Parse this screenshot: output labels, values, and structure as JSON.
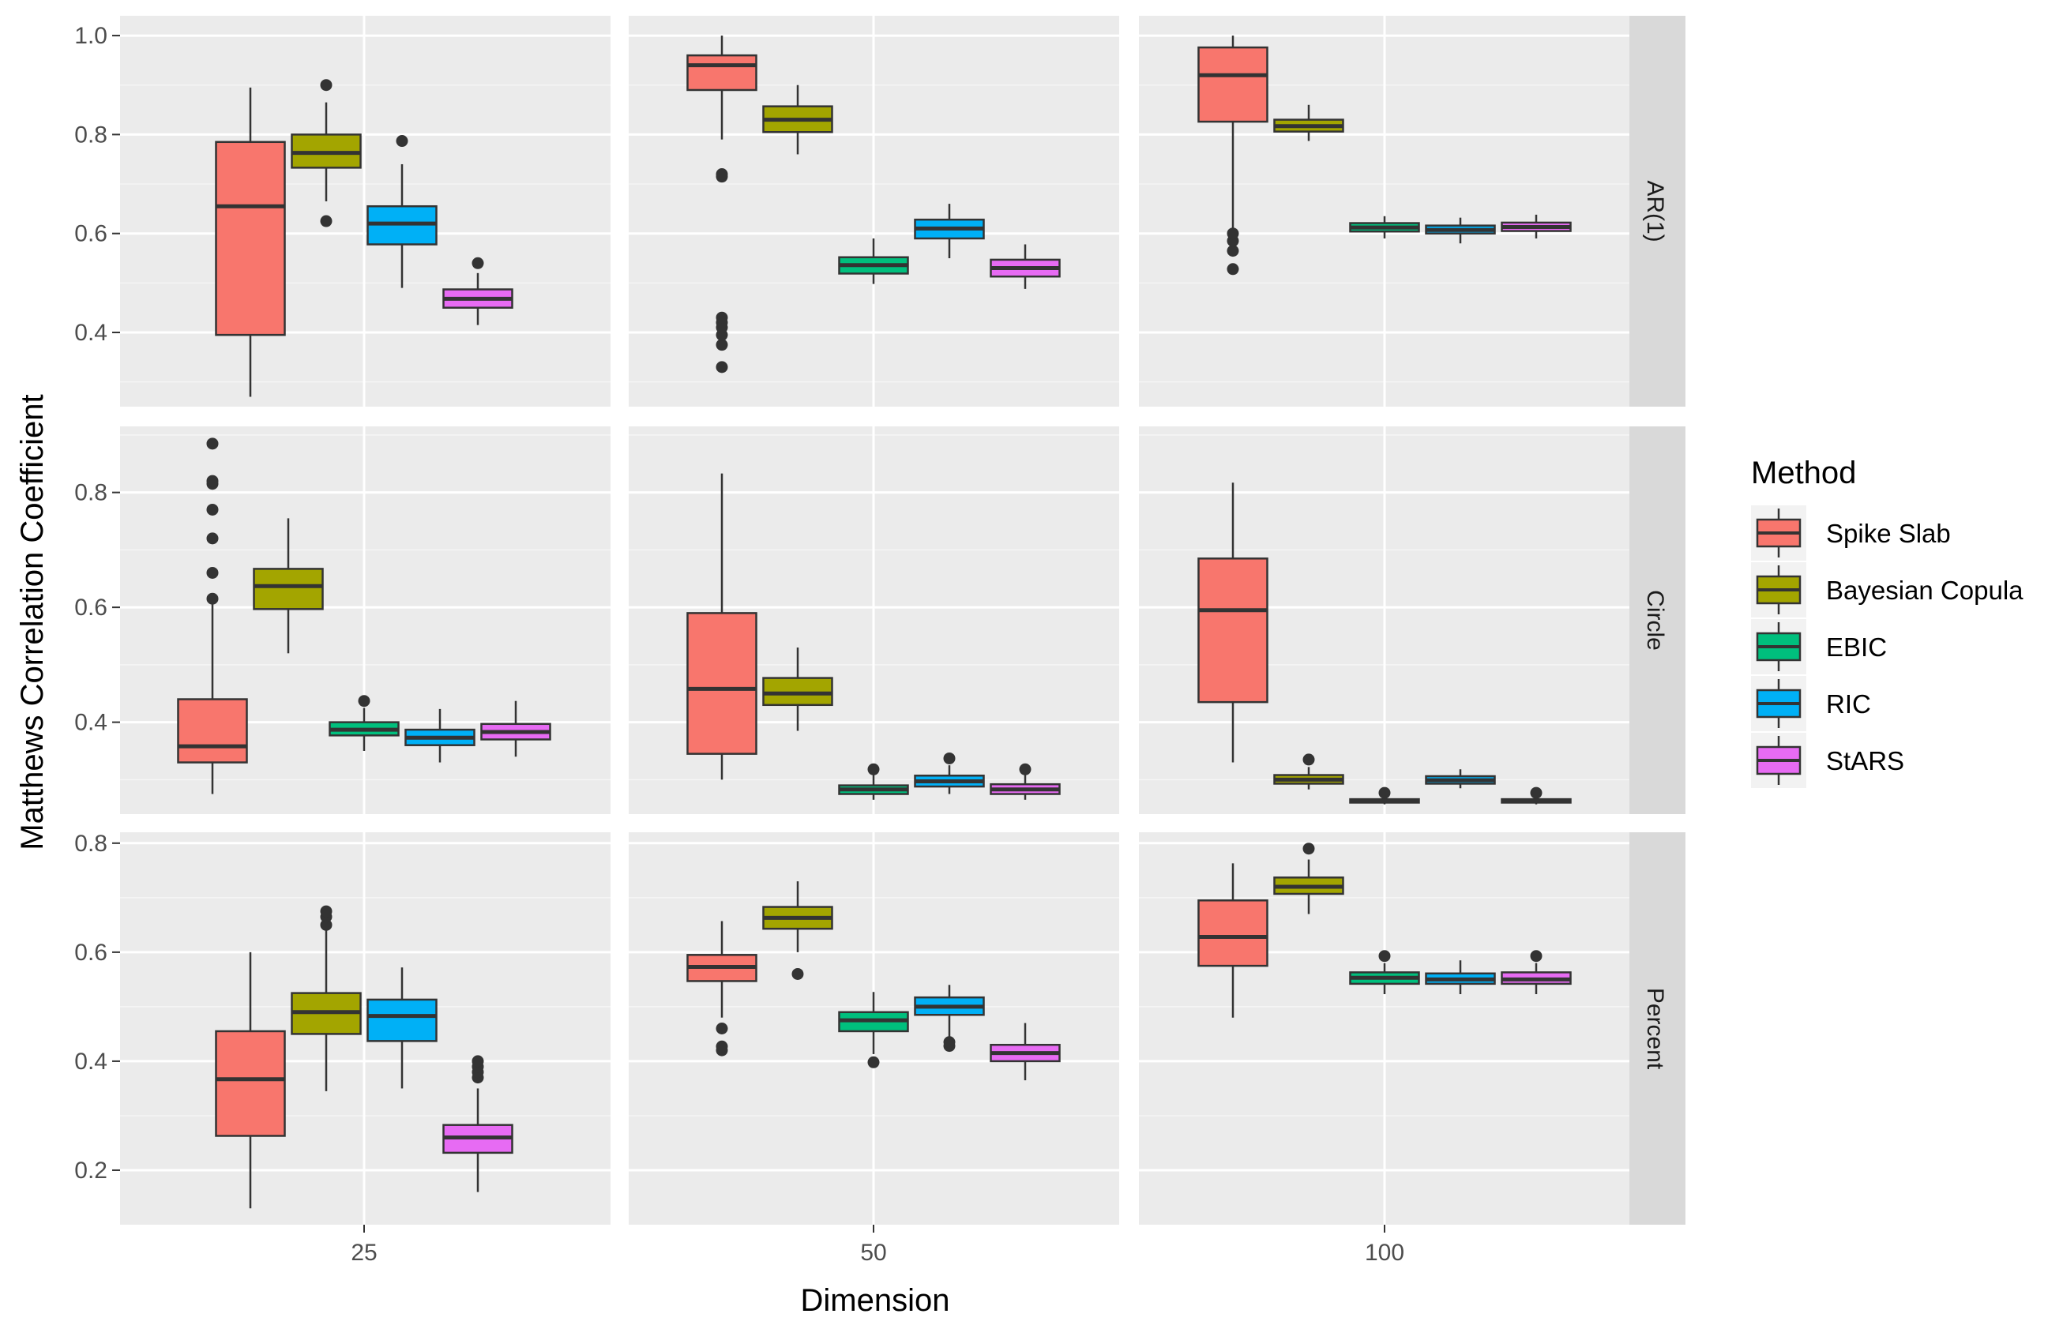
{
  "chart_data": {
    "type": "boxplot",
    "xlabel": "Dimension",
    "ylabel": "Matthews Correlation Coefficient",
    "columns": [
      "25",
      "50",
      "100"
    ],
    "rows": [
      "AR(1)",
      "Circle",
      "Percent"
    ],
    "legend": {
      "title": "Method",
      "placement": "right",
      "items": [
        {
          "name": "Spike Slab",
          "color": "#F8766D"
        },
        {
          "name": "Bayesian Copula",
          "color": "#A3A500"
        },
        {
          "name": "EBIC",
          "color": "#00BF7D"
        },
        {
          "name": "RIC",
          "color": "#00B0F6"
        },
        {
          "name": "StARS",
          "color": "#E76BF3"
        }
      ]
    },
    "panels": [
      {
        "row": "AR(1)",
        "ylim": [
          0.25,
          1.04
        ],
        "yticks": [
          0.4,
          0.6,
          0.8,
          1.0
        ],
        "yticklabels": [
          "0.4",
          "0.6",
          "0.8",
          "1.0"
        ],
        "groups": [
          {
            "dimension": "25",
            "boxes": [
              {
                "method": "Spike Slab",
                "lower_whisker": 0.27,
                "q1": 0.395,
                "median": 0.655,
                "q3": 0.785,
                "upper_whisker": 0.895,
                "outliers": []
              },
              {
                "method": "Bayesian Copula",
                "lower_whisker": 0.665,
                "q1": 0.733,
                "median": 0.763,
                "q3": 0.8,
                "upper_whisker": 0.865,
                "outliers": [
                  0.625,
                  0.9
                ]
              },
              {
                "method": "RIC",
                "lower_whisker": 0.49,
                "q1": 0.578,
                "median": 0.62,
                "q3": 0.655,
                "upper_whisker": 0.74,
                "outliers": [
                  0.787
                ]
              },
              {
                "method": "StARS",
                "lower_whisker": 0.415,
                "q1": 0.45,
                "median": 0.468,
                "q3": 0.487,
                "upper_whisker": 0.52,
                "outliers": [
                  0.54
                ]
              }
            ]
          },
          {
            "dimension": "50",
            "boxes": [
              {
                "method": "Spike Slab",
                "lower_whisker": 0.79,
                "q1": 0.89,
                "median": 0.94,
                "q3": 0.96,
                "upper_whisker": 1.0,
                "outliers": [
                  0.33,
                  0.375,
                  0.395,
                  0.41,
                  0.42,
                  0.43,
                  0.715,
                  0.72
                ]
              },
              {
                "method": "Bayesian Copula",
                "lower_whisker": 0.76,
                "q1": 0.805,
                "median": 0.83,
                "q3": 0.857,
                "upper_whisker": 0.9,
                "outliers": []
              },
              {
                "method": "EBIC",
                "lower_whisker": 0.498,
                "q1": 0.519,
                "median": 0.536,
                "q3": 0.552,
                "upper_whisker": 0.59,
                "outliers": []
              },
              {
                "method": "RIC",
                "lower_whisker": 0.55,
                "q1": 0.59,
                "median": 0.61,
                "q3": 0.628,
                "upper_whisker": 0.66,
                "outliers": []
              },
              {
                "method": "StARS",
                "lower_whisker": 0.488,
                "q1": 0.513,
                "median": 0.53,
                "q3": 0.547,
                "upper_whisker": 0.578,
                "outliers": []
              }
            ]
          },
          {
            "dimension": "100",
            "boxes": [
              {
                "method": "Spike Slab",
                "lower_whisker": 0.61,
                "q1": 0.826,
                "median": 0.92,
                "q3": 0.976,
                "upper_whisker": 1.0,
                "outliers": [
                  0.528,
                  0.565,
                  0.585,
                  0.6
                ]
              },
              {
                "method": "Bayesian Copula",
                "lower_whisker": 0.787,
                "q1": 0.806,
                "median": 0.817,
                "q3": 0.83,
                "upper_whisker": 0.86,
                "outliers": []
              },
              {
                "method": "EBIC",
                "lower_whisker": 0.59,
                "q1": 0.604,
                "median": 0.612,
                "q3": 0.621,
                "upper_whisker": 0.635,
                "outliers": []
              },
              {
                "method": "RIC",
                "lower_whisker": 0.58,
                "q1": 0.6,
                "median": 0.607,
                "q3": 0.616,
                "upper_whisker": 0.632,
                "outliers": []
              },
              {
                "method": "StARS",
                "lower_whisker": 0.59,
                "q1": 0.605,
                "median": 0.613,
                "q3": 0.622,
                "upper_whisker": 0.638,
                "outliers": []
              }
            ]
          }
        ]
      },
      {
        "row": "Circle",
        "ylim": [
          0.24,
          0.915
        ],
        "yticks": [
          0.4,
          0.6,
          0.8
        ],
        "yticklabels": [
          "0.4",
          "0.6",
          "0.8"
        ],
        "groups": [
          {
            "dimension": "25",
            "boxes": [
              {
                "method": "Spike Slab",
                "lower_whisker": 0.275,
                "q1": 0.33,
                "median": 0.358,
                "q3": 0.44,
                "upper_whisker": 0.61,
                "outliers": [
                  0.615,
                  0.66,
                  0.72,
                  0.77,
                  0.815,
                  0.82,
                  0.885
                ]
              },
              {
                "method": "Bayesian Copula",
                "lower_whisker": 0.52,
                "q1": 0.597,
                "median": 0.637,
                "q3": 0.667,
                "upper_whisker": 0.755,
                "outliers": []
              },
              {
                "method": "EBIC",
                "lower_whisker": 0.35,
                "q1": 0.377,
                "median": 0.387,
                "q3": 0.4,
                "upper_whisker": 0.425,
                "outliers": [
                  0.437
                ]
              },
              {
                "method": "RIC",
                "lower_whisker": 0.33,
                "q1": 0.36,
                "median": 0.373,
                "q3": 0.387,
                "upper_whisker": 0.423,
                "outliers": []
              },
              {
                "method": "StARS",
                "lower_whisker": 0.34,
                "q1": 0.37,
                "median": 0.383,
                "q3": 0.397,
                "upper_whisker": 0.437,
                "outliers": []
              }
            ]
          },
          {
            "dimension": "50",
            "boxes": [
              {
                "method": "Spike Slab",
                "lower_whisker": 0.3,
                "q1": 0.345,
                "median": 0.458,
                "q3": 0.59,
                "upper_whisker": 0.833,
                "outliers": []
              },
              {
                "method": "Bayesian Copula",
                "lower_whisker": 0.385,
                "q1": 0.43,
                "median": 0.45,
                "q3": 0.477,
                "upper_whisker": 0.53,
                "outliers": []
              },
              {
                "method": "EBIC",
                "lower_whisker": 0.265,
                "q1": 0.275,
                "median": 0.283,
                "q3": 0.29,
                "upper_whisker": 0.31,
                "outliers": [
                  0.318
                ]
              },
              {
                "method": "RIC",
                "lower_whisker": 0.275,
                "q1": 0.288,
                "median": 0.297,
                "q3": 0.307,
                "upper_whisker": 0.325,
                "outliers": [
                  0.337
                ]
              },
              {
                "method": "StARS",
                "lower_whisker": 0.265,
                "q1": 0.275,
                "median": 0.283,
                "q3": 0.292,
                "upper_whisker": 0.31,
                "outliers": [
                  0.318
                ]
              }
            ]
          },
          {
            "dimension": "100",
            "boxes": [
              {
                "method": "Spike Slab",
                "lower_whisker": 0.33,
                "q1": 0.435,
                "median": 0.595,
                "q3": 0.685,
                "upper_whisker": 0.817,
                "outliers": []
              },
              {
                "method": "Bayesian Copula",
                "lower_whisker": 0.283,
                "q1": 0.293,
                "median": 0.3,
                "q3": 0.308,
                "upper_whisker": 0.322,
                "outliers": [
                  0.335
                ]
              },
              {
                "method": "EBIC",
                "lower_whisker": 0.257,
                "q1": 0.26,
                "median": 0.263,
                "q3": 0.266,
                "upper_whisker": 0.272,
                "outliers": [
                  0.277
                ]
              },
              {
                "method": "RIC",
                "lower_whisker": 0.285,
                "q1": 0.293,
                "median": 0.299,
                "q3": 0.306,
                "upper_whisker": 0.318,
                "outliers": []
              },
              {
                "method": "StARS",
                "lower_whisker": 0.257,
                "q1": 0.26,
                "median": 0.263,
                "q3": 0.266,
                "upper_whisker": 0.272,
                "outliers": [
                  0.277
                ]
              }
            ]
          }
        ]
      },
      {
        "row": "Percent",
        "ylim": [
          0.1,
          0.82
        ],
        "yticks": [
          0.2,
          0.4,
          0.6,
          0.8
        ],
        "yticklabels": [
          "0.2",
          "0.4",
          "0.6",
          "0.8"
        ],
        "groups": [
          {
            "dimension": "25",
            "boxes": [
              {
                "method": "Spike Slab",
                "lower_whisker": 0.13,
                "q1": 0.263,
                "median": 0.367,
                "q3": 0.455,
                "upper_whisker": 0.6,
                "outliers": []
              },
              {
                "method": "Bayesian Copula",
                "lower_whisker": 0.345,
                "q1": 0.45,
                "median": 0.49,
                "q3": 0.525,
                "upper_whisker": 0.64,
                "outliers": [
                  0.65,
                  0.665,
                  0.675
                ]
              },
              {
                "method": "RIC",
                "lower_whisker": 0.35,
                "q1": 0.437,
                "median": 0.483,
                "q3": 0.513,
                "upper_whisker": 0.572,
                "outliers": []
              },
              {
                "method": "StARS",
                "lower_whisker": 0.16,
                "q1": 0.232,
                "median": 0.26,
                "q3": 0.283,
                "upper_whisker": 0.35,
                "outliers": [
                  0.37,
                  0.38,
                  0.39,
                  0.4
                ]
              }
            ]
          },
          {
            "dimension": "50",
            "boxes": [
              {
                "method": "Spike Slab",
                "lower_whisker": 0.48,
                "q1": 0.547,
                "median": 0.573,
                "q3": 0.595,
                "upper_whisker": 0.657,
                "outliers": [
                  0.42,
                  0.427,
                  0.46
                ]
              },
              {
                "method": "Bayesian Copula",
                "lower_whisker": 0.6,
                "q1": 0.643,
                "median": 0.663,
                "q3": 0.683,
                "upper_whisker": 0.73,
                "outliers": [
                  0.56
                ]
              },
              {
                "method": "EBIC",
                "lower_whisker": 0.413,
                "q1": 0.455,
                "median": 0.475,
                "q3": 0.49,
                "upper_whisker": 0.527,
                "outliers": [
                  0.398
                ]
              },
              {
                "method": "RIC",
                "lower_whisker": 0.445,
                "q1": 0.485,
                "median": 0.5,
                "q3": 0.517,
                "upper_whisker": 0.54,
                "outliers": [
                  0.428,
                  0.435
                ]
              },
              {
                "method": "StARS",
                "lower_whisker": 0.365,
                "q1": 0.4,
                "median": 0.415,
                "q3": 0.43,
                "upper_whisker": 0.47,
                "outliers": []
              }
            ]
          },
          {
            "dimension": "100",
            "boxes": [
              {
                "method": "Spike Slab",
                "lower_whisker": 0.48,
                "q1": 0.575,
                "median": 0.628,
                "q3": 0.695,
                "upper_whisker": 0.763,
                "outliers": []
              },
              {
                "method": "Bayesian Copula",
                "lower_whisker": 0.67,
                "q1": 0.707,
                "median": 0.72,
                "q3": 0.737,
                "upper_whisker": 0.77,
                "outliers": [
                  0.79
                ]
              },
              {
                "method": "EBIC",
                "lower_whisker": 0.523,
                "q1": 0.542,
                "median": 0.553,
                "q3": 0.563,
                "upper_whisker": 0.58,
                "outliers": [
                  0.593
                ]
              },
              {
                "method": "RIC",
                "lower_whisker": 0.523,
                "q1": 0.542,
                "median": 0.55,
                "q3": 0.561,
                "upper_whisker": 0.585,
                "outliers": []
              },
              {
                "method": "StARS",
                "lower_whisker": 0.523,
                "q1": 0.542,
                "median": 0.55,
                "q3": 0.563,
                "upper_whisker": 0.58,
                "outliers": [
                  0.593
                ]
              }
            ]
          }
        ]
      }
    ]
  }
}
